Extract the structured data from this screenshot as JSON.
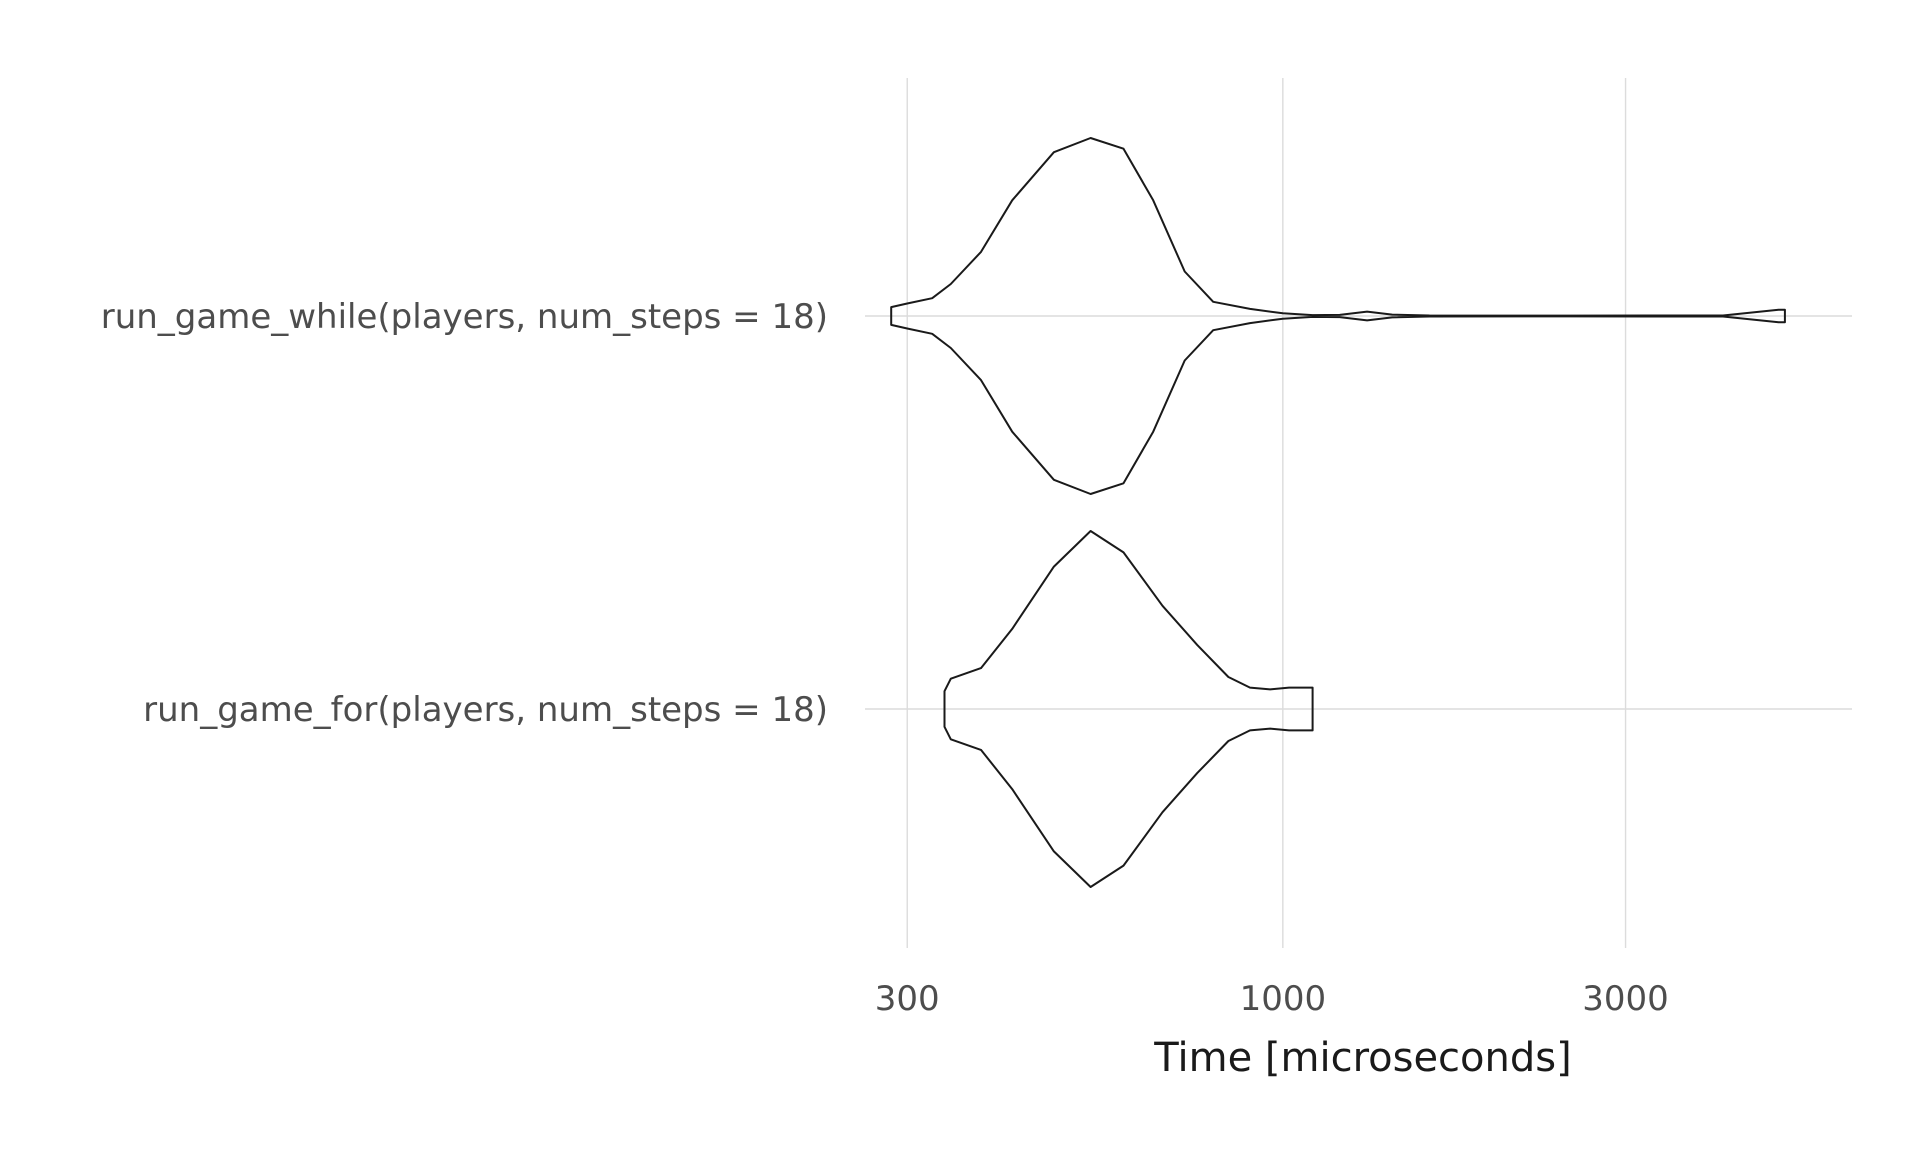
{
  "chart_data": {
    "type": "violin",
    "xlabel": "Time [microseconds]",
    "ylabel": "",
    "xscale": "log",
    "xlim": [
      262,
      6200
    ],
    "xticks": [
      {
        "value": 300,
        "label": "300"
      },
      {
        "value": 1000,
        "label": "1000"
      },
      {
        "value": 3000,
        "label": "3000"
      }
    ],
    "grid": true,
    "categories": [
      "run_game_while(players, num_steps = 18)",
      "run_game_for(players, num_steps = 18)"
    ],
    "series": [
      {
        "category": "run_game_while(players, num_steps = 18)",
        "density": [
          [
            285,
            0.05
          ],
          [
            300,
            0.07
          ],
          [
            325,
            0.1
          ],
          [
            345,
            0.18
          ],
          [
            380,
            0.36
          ],
          [
            420,
            0.65
          ],
          [
            480,
            0.92
          ],
          [
            540,
            1.0
          ],
          [
            600,
            0.94
          ],
          [
            660,
            0.65
          ],
          [
            730,
            0.25
          ],
          [
            800,
            0.08
          ],
          [
            900,
            0.04
          ],
          [
            1000,
            0.015
          ],
          [
            1100,
            0.005
          ],
          [
            1200,
            0.006
          ],
          [
            1310,
            0.025
          ],
          [
            1420,
            0.008
          ],
          [
            1600,
            0.003
          ],
          [
            2500,
            0.002
          ],
          [
            4100,
            0.003
          ],
          [
            4900,
            0.035
          ],
          [
            5000,
            0.035
          ]
        ]
      },
      {
        "category": "run_game_for(players, num_steps = 18)",
        "density": [
          [
            338,
            0.1
          ],
          [
            345,
            0.17
          ],
          [
            380,
            0.23
          ],
          [
            420,
            0.45
          ],
          [
            480,
            0.8
          ],
          [
            540,
            1.0
          ],
          [
            600,
            0.88
          ],
          [
            680,
            0.58
          ],
          [
            760,
            0.36
          ],
          [
            840,
            0.18
          ],
          [
            900,
            0.12
          ],
          [
            960,
            0.11
          ],
          [
            1020,
            0.12
          ],
          [
            1080,
            0.12
          ],
          [
            1100,
            0.12
          ]
        ]
      }
    ]
  }
}
